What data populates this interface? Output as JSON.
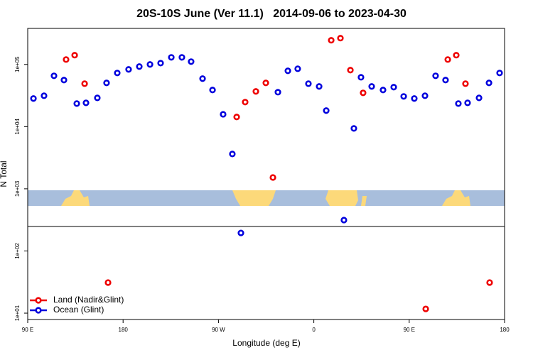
{
  "chart_data": {
    "type": "scatter",
    "title": "20S-10S June (Ver 11.1)   2014-09-06 to 2023-04-30",
    "x_label": "Longitude (deg E)",
    "y_label": "N Total",
    "log_y": true,
    "xlim": [
      90,
      540
    ],
    "xticks": [
      {
        "value": 90,
        "label": "90 E"
      },
      {
        "value": 180,
        "label": "180"
      },
      {
        "value": 270,
        "label": "90 W"
      },
      {
        "value": 360,
        "label": "0"
      },
      {
        "value": 450,
        "label": "90 E"
      },
      {
        "value": 540,
        "label": "180"
      }
    ],
    "ylim": [
      7.9,
      380000
    ],
    "yticks": [
      {
        "value": 10,
        "label": "1e+01"
      },
      {
        "value": 100,
        "label": "1e+02"
      },
      {
        "value": 1000,
        "label": "1e+03"
      },
      {
        "value": 10000,
        "label": "1e+04"
      },
      {
        "value": 100000,
        "label": "1e+05"
      }
    ],
    "legend": "bottom-left",
    "series": [
      {
        "name": "Land (Nadir&Glint)",
        "color": "#ee0000",
        "x": [
          126.2,
          134.3,
          143.7,
          165.8,
          287.2,
          295.2,
          305.3,
          314.7,
          321.4,
          376.4,
          385.1,
          394.5,
          406.5,
          465.6,
          486.4,
          494.4,
          503.1,
          525.9
        ],
        "values": [
          120000,
          141000,
          49100,
          31,
          14300,
          24800,
          36800,
          50500,
          1520,
          245000,
          265000,
          81100,
          34900,
          11.7,
          120000,
          141000,
          49100,
          31
        ]
      },
      {
        "name": "Ocean (Glint)",
        "color": "#0000dd",
        "x": [
          95.4,
          105.4,
          114.8,
          124.2,
          136.3,
          145.0,
          155.7,
          164.4,
          174.5,
          185.2,
          195.3,
          205.4,
          215.4,
          225.5,
          235.5,
          244.2,
          255.0,
          264.4,
          274.4,
          283.1,
          291.2,
          326.1,
          335.5,
          344.8,
          354.9,
          365.0,
          371.7,
          388.4,
          397.8,
          404.5,
          414.6,
          425.3,
          435.4,
          444.8,
          454.8,
          464.9,
          474.9,
          484.3,
          496.4,
          505.1,
          515.9,
          525.3,
          535.3
        ],
        "values": [
          28300,
          31400,
          65600,
          56100,
          23500,
          24100,
          29000,
          50500,
          72900,
          83200,
          92400,
          100000,
          105000,
          130000,
          130000,
          111000,
          59100,
          38800,
          15800,
          3630,
          195,
          35800,
          78900,
          85300,
          49100,
          44300,
          18100,
          314,
          9360,
          62200,
          44300,
          38800,
          43100,
          30600,
          28300,
          31400,
          65600,
          56100,
          23500,
          24100,
          29000,
          50500,
          72900
        ]
      }
    ]
  }
}
